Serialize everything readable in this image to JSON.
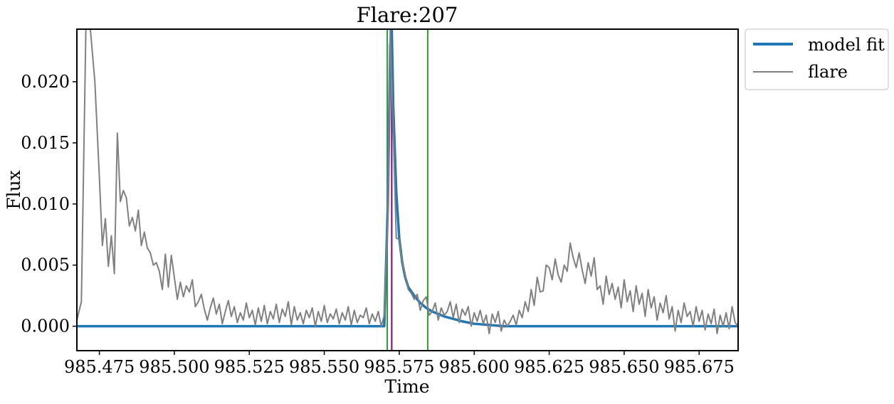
{
  "chart_data": {
    "type": "line",
    "title": "Flare:207",
    "xlabel": "Time",
    "ylabel": "Flux",
    "xlim": [
      985.4675,
      985.688
    ],
    "ylim": [
      -0.002,
      0.0243
    ],
    "x_ticks": [
      "985.475",
      "985.500",
      "985.525",
      "985.550",
      "985.575",
      "985.600",
      "985.625",
      "985.650",
      "985.675"
    ],
    "x_tick_values": [
      985.475,
      985.5,
      985.525,
      985.55,
      985.575,
      985.6,
      985.625,
      985.65,
      985.675
    ],
    "y_ticks": [
      "0.000",
      "0.005",
      "0.010",
      "0.015",
      "0.020"
    ],
    "y_tick_values": [
      0.0,
      0.005,
      0.01,
      0.015,
      0.02
    ],
    "grid": false,
    "legend_position": "outside-top-right",
    "colors": {
      "model_fit": "#1f77b4",
      "flare": "#808080",
      "start_end_lines": "#2ca02c",
      "peak_line": "#800080"
    },
    "vertical_lines": [
      {
        "x": 985.571,
        "color": "#2ca02c"
      },
      {
        "x": 985.5725,
        "color": "#800080"
      },
      {
        "x": 985.5845,
        "color": "#2ca02c"
      }
    ],
    "series": [
      {
        "name": "model fit",
        "x": [
          985.4675,
          985.57,
          985.5712,
          985.572,
          985.5725,
          985.573,
          985.574,
          985.575,
          985.576,
          985.577,
          985.578,
          985.58,
          985.582,
          985.584,
          985.586,
          985.588,
          985.59,
          985.593,
          985.596,
          985.6,
          985.605,
          985.61,
          985.688
        ],
        "y": [
          0.0,
          0.0,
          0.01,
          0.023,
          0.0243,
          0.018,
          0.011,
          0.0072,
          0.0052,
          0.004,
          0.0032,
          0.0025,
          0.0019,
          0.0015,
          0.0012,
          0.001,
          0.0008,
          0.0006,
          0.0004,
          0.0002,
          0.0001,
          0.0,
          0.0
        ]
      },
      {
        "name": "flare",
        "x": [
          985.4675,
          985.469,
          985.4705,
          985.472,
          985.4735,
          985.475,
          985.476,
          985.477,
          985.478,
          985.479,
          985.48,
          985.481,
          985.482,
          985.483,
          985.484,
          985.485,
          985.486,
          985.487,
          985.488,
          985.489,
          985.49,
          985.491,
          985.492,
          985.493,
          985.494,
          985.495,
          985.496,
          985.497,
          985.498,
          985.499,
          985.5,
          985.501,
          985.502,
          985.503,
          985.504,
          985.505,
          985.506,
          985.507,
          985.508,
          985.509,
          985.51,
          985.511,
          985.512,
          985.513,
          985.514,
          985.515,
          985.516,
          985.517,
          985.518,
          985.519,
          985.52,
          985.521,
          985.522,
          985.523,
          985.524,
          985.525,
          985.526,
          985.527,
          985.528,
          985.529,
          985.53,
          985.531,
          985.532,
          985.533,
          985.534,
          985.535,
          985.536,
          985.537,
          985.538,
          985.539,
          985.54,
          985.541,
          985.542,
          985.543,
          985.544,
          985.545,
          985.546,
          985.547,
          985.548,
          985.549,
          985.55,
          985.551,
          985.552,
          985.553,
          985.554,
          985.555,
          985.556,
          985.557,
          985.558,
          985.559,
          985.56,
          985.561,
          985.562,
          985.563,
          985.564,
          985.565,
          985.566,
          985.567,
          985.568,
          985.569,
          985.57,
          985.5712,
          985.572,
          985.573,
          985.574,
          985.575,
          985.576,
          985.577,
          985.578,
          985.579,
          985.58,
          985.581,
          985.582,
          985.583,
          985.584,
          985.585,
          985.586,
          985.587,
          985.588,
          985.589,
          985.59,
          985.591,
          985.592,
          985.593,
          985.594,
          985.595,
          985.596,
          985.597,
          985.598,
          985.599,
          985.6,
          985.601,
          985.602,
          985.603,
          985.604,
          985.605,
          985.606,
          985.607,
          985.608,
          985.609,
          985.61,
          985.611,
          985.612,
          985.613,
          985.614,
          985.615,
          985.616,
          985.617,
          985.618,
          985.619,
          985.62,
          985.621,
          985.622,
          985.623,
          985.624,
          985.625,
          985.626,
          985.627,
          985.628,
          985.629,
          985.63,
          985.631,
          985.632,
          985.633,
          985.634,
          985.635,
          985.636,
          985.637,
          985.638,
          985.639,
          985.64,
          985.641,
          985.642,
          985.643,
          985.644,
          985.645,
          985.646,
          985.647,
          985.648,
          985.649,
          985.65,
          985.651,
          985.652,
          985.653,
          985.654,
          985.655,
          985.656,
          985.657,
          985.658,
          985.659,
          985.66,
          985.661,
          985.662,
          985.663,
          985.664,
          985.665,
          985.666,
          985.667,
          985.668,
          985.669,
          985.67,
          985.671,
          985.672,
          985.673,
          985.674,
          985.675,
          985.676,
          985.677,
          985.678,
          985.679,
          985.68,
          985.681,
          985.682,
          985.683,
          985.684,
          985.685,
          985.686,
          985.687,
          985.688
        ],
        "y": [
          0.0005,
          0.002,
          0.0243,
          0.0243,
          0.02,
          0.0122,
          0.0066,
          0.0088,
          0.0049,
          0.0074,
          0.0043,
          0.0158,
          0.0102,
          0.0111,
          0.0105,
          0.0082,
          0.0089,
          0.0078,
          0.0095,
          0.0066,
          0.0077,
          0.0064,
          0.006,
          0.005,
          0.0052,
          0.0045,
          0.003,
          0.0059,
          0.0032,
          0.0058,
          0.004,
          0.0022,
          0.0036,
          0.0024,
          0.0033,
          0.0028,
          0.0038,
          0.0016,
          0.002,
          0.0026,
          0.0014,
          0.0005,
          0.0015,
          0.0023,
          0.001,
          0.0018,
          0.0002,
          0.0012,
          0.0021,
          0.0008,
          0.0016,
          0.0003,
          0.0011,
          0.0005,
          0.0019,
          0.0007,
          0.0013,
          0.0001,
          0.0015,
          0.0004,
          0.0017,
          0.0002,
          0.0012,
          0.0006,
          0.0018,
          0.0003,
          0.0014,
          0.0008,
          0.002,
          0.0001,
          0.0016,
          0.0005,
          0.0011,
          0.0002,
          0.0013,
          0.0007,
          0.0015,
          0.0,
          0.0012,
          0.0004,
          0.0017,
          0.0003,
          0.001,
          0.0006,
          0.0014,
          0.0002,
          0.0011,
          0.0005,
          0.0016,
          0.0001,
          0.0013,
          0.0003,
          0.0009,
          0.0007,
          0.0015,
          0.0002,
          0.001,
          0.0004,
          0.0012,
          0.0,
          0.0009,
          0.009,
          0.0243,
          0.016,
          0.0072,
          0.0071,
          0.0052,
          0.0042,
          0.003,
          0.0027,
          0.0022,
          0.0026,
          0.0013,
          0.0021,
          0.0024,
          0.0009,
          0.0012,
          0.0019,
          0.0005,
          0.0015,
          0.0009,
          0.0012,
          0.002,
          0.0007,
          0.0018,
          0.0003,
          0.0014,
          0.0009,
          0.0016,
          0.0,
          0.0011,
          0.0004,
          0.0013,
          0.0002,
          0.0009,
          -0.0006,
          0.001,
          0.0003,
          0.0012,
          -0.0004,
          0.0005,
          0.0,
          0.0004,
          0.0009,
          0.0001,
          0.0013,
          0.0007,
          0.002,
          0.0012,
          0.003,
          0.0017,
          0.004,
          0.0028,
          0.0029,
          0.005,
          0.0048,
          0.0038,
          0.0055,
          0.0042,
          0.0036,
          0.005,
          0.0045,
          0.0068,
          0.0056,
          0.0048,
          0.006,
          0.0046,
          0.0035,
          0.0052,
          0.0041,
          0.0056,
          0.003,
          0.0033,
          0.0018,
          0.0041,
          0.0026,
          0.0035,
          0.0022,
          0.0032,
          0.0015,
          0.0038,
          0.002,
          0.0029,
          0.0012,
          0.0033,
          0.0018,
          0.0027,
          0.0008,
          0.003,
          0.0015,
          0.0024,
          0.0005,
          0.0019,
          0.0011,
          0.0025,
          0.0006,
          0.0016,
          -0.0004,
          0.0013,
          0.0003,
          0.0019,
          0.0008,
          0.0012,
          0.0,
          0.0016,
          0.0004,
          0.0013,
          -0.0003,
          0.001,
          0.0002,
          0.0014,
          -0.0006,
          0.0009,
          0.0,
          0.0011,
          -0.0002,
          0.0016,
          0.0003,
          0.0
        ]
      }
    ]
  }
}
